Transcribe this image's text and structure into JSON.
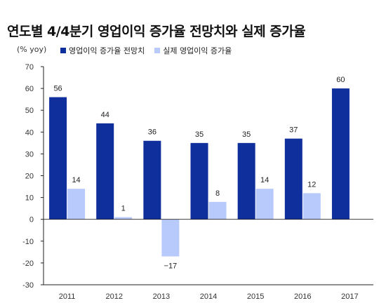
{
  "title": "연도별 4/4분기 영업이익 증가율 전망치와 실제 증가율",
  "unit_label": "(% yoy)",
  "colors": {
    "forecast": "#0f2f9c",
    "actual": "#b8c9fb"
  },
  "chart_data": {
    "type": "bar",
    "title": "연도별 4/4분기 영업이익 증가율 전망치와 실제 증가율",
    "ylabel": "(% yoy)",
    "xlabel": "",
    "categories": [
      "2011",
      "2012",
      "2013",
      "2014",
      "2015",
      "2016",
      "2017"
    ],
    "series": [
      {
        "name": "영업이익 증가율 전망치",
        "values": [
          56,
          44,
          36,
          35,
          35,
          37,
          60
        ],
        "labels": [
          "56",
          "44",
          "36",
          "35",
          "35",
          "37",
          "60"
        ]
      },
      {
        "name": "실제 영업이익 증가율",
        "values": [
          14,
          1,
          -17,
          8,
          14,
          12,
          null
        ],
        "labels": [
          "14",
          "1",
          "−17",
          "8",
          "14",
          "12",
          null
        ]
      }
    ],
    "ylim": [
      -30,
      70
    ],
    "yticks": [
      "70",
      "60",
      "50",
      "40",
      "30",
      "20",
      "10",
      "0",
      "-10",
      "-20",
      "-30"
    ],
    "grid": false,
    "legend_position": "top-left"
  }
}
